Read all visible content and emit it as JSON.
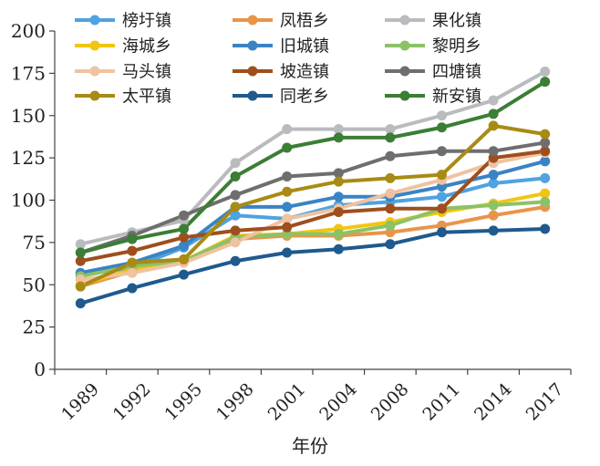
{
  "chart_data": {
    "type": "line",
    "xlabel": "年份",
    "ylabel": "",
    "ylim": [
      0,
      200
    ],
    "yticks": [
      0,
      25,
      50,
      75,
      100,
      125,
      150,
      175,
      200
    ],
    "categories": [
      "1989",
      "1992",
      "1995",
      "1998",
      "2001",
      "2004",
      "2008",
      "2011",
      "2014",
      "2017"
    ],
    "grid": false,
    "legend_position": "top-left",
    "series": [
      {
        "name": "榜圩镇",
        "color": "#4ea3e0",
        "values": [
          56,
          60,
          72,
          91,
          89,
          97,
          99,
          102,
          110,
          113
        ]
      },
      {
        "name": "凤梧乡",
        "color": "#e8954a",
        "values": [
          49,
          58,
          64,
          77,
          79,
          79,
          81,
          85,
          91,
          96
        ]
      },
      {
        "name": "果化镇",
        "color": "#b9bbbe",
        "values": [
          74,
          81,
          88,
          122,
          142,
          142,
          142,
          150,
          159,
          176
        ]
      },
      {
        "name": "海城乡",
        "color": "#f2c511",
        "values": [
          50,
          59,
          64,
          79,
          80,
          83,
          87,
          93,
          98,
          104
        ]
      },
      {
        "name": "旧城镇",
        "color": "#3a83c4",
        "values": [
          57,
          63,
          73,
          96,
          96,
          102,
          102,
          108,
          115,
          123
        ]
      },
      {
        "name": "黎明乡",
        "color": "#8cc267",
        "values": [
          55,
          61,
          64,
          78,
          80,
          80,
          85,
          95,
          97,
          99
        ]
      },
      {
        "name": "马头镇",
        "color": "#f0c2a0",
        "values": [
          53,
          57,
          63,
          75,
          89,
          95,
          104,
          112,
          122,
          128
        ]
      },
      {
        "name": "坡造镇",
        "color": "#9e4f1d",
        "values": [
          64,
          70,
          78,
          82,
          84,
          93,
          95,
          95,
          125,
          129
        ]
      },
      {
        "name": "四塘镇",
        "color": "#6e6e6e",
        "values": [
          69,
          79,
          91,
          103,
          114,
          116,
          126,
          129,
          129,
          134
        ]
      },
      {
        "name": "太平镇",
        "color": "#a88b14",
        "values": [
          49,
          63,
          65,
          96,
          105,
          111,
          113,
          115,
          144,
          139
        ]
      },
      {
        "name": "同老乡",
        "color": "#1f5a8e",
        "values": [
          39,
          48,
          56,
          64,
          69,
          71,
          74,
          81,
          82,
          83
        ]
      },
      {
        "name": "新安镇",
        "color": "#3b7e35",
        "values": [
          69,
          77,
          83,
          114,
          131,
          137,
          137,
          143,
          151,
          170
        ]
      }
    ]
  }
}
